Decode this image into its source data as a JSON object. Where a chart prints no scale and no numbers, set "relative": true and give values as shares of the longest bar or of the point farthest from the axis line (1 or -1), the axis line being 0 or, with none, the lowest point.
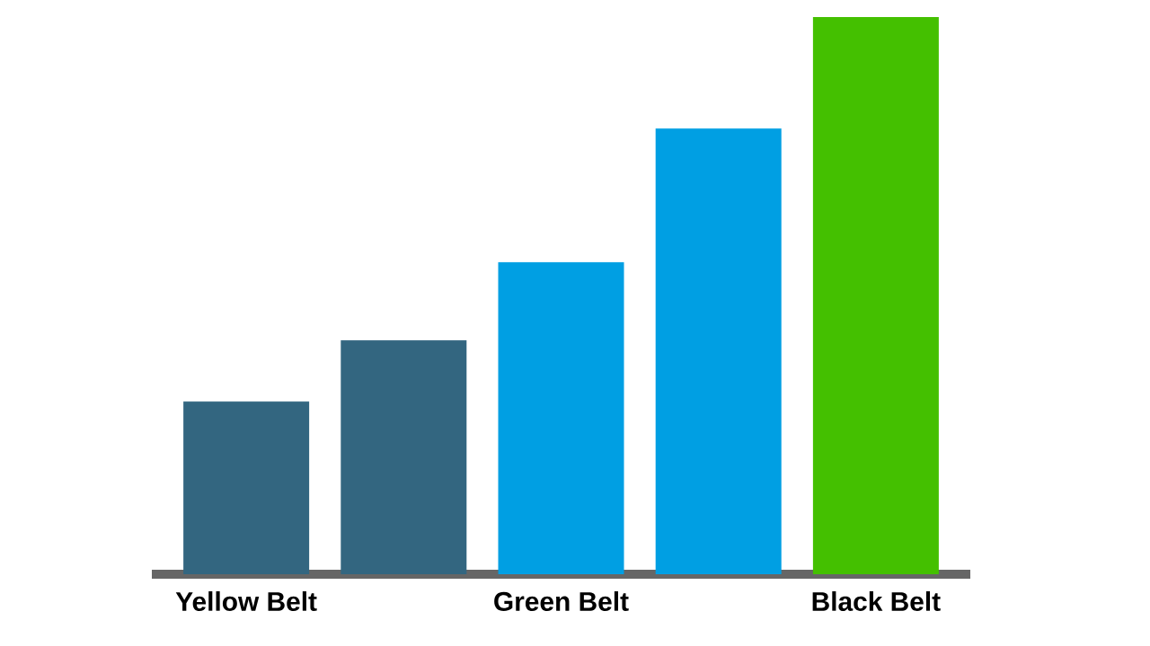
{
  "chart_data": {
    "type": "bar",
    "relative": true,
    "categories": [
      "Yellow Belt",
      null,
      "Green Belt",
      null,
      "Black Belt"
    ],
    "values": [
      0.31,
      0.42,
      0.56,
      0.8,
      1
    ],
    "colors": [
      "#336680",
      "#336680",
      "#009fe3",
      "#009fe3",
      "#44c000"
    ]
  }
}
